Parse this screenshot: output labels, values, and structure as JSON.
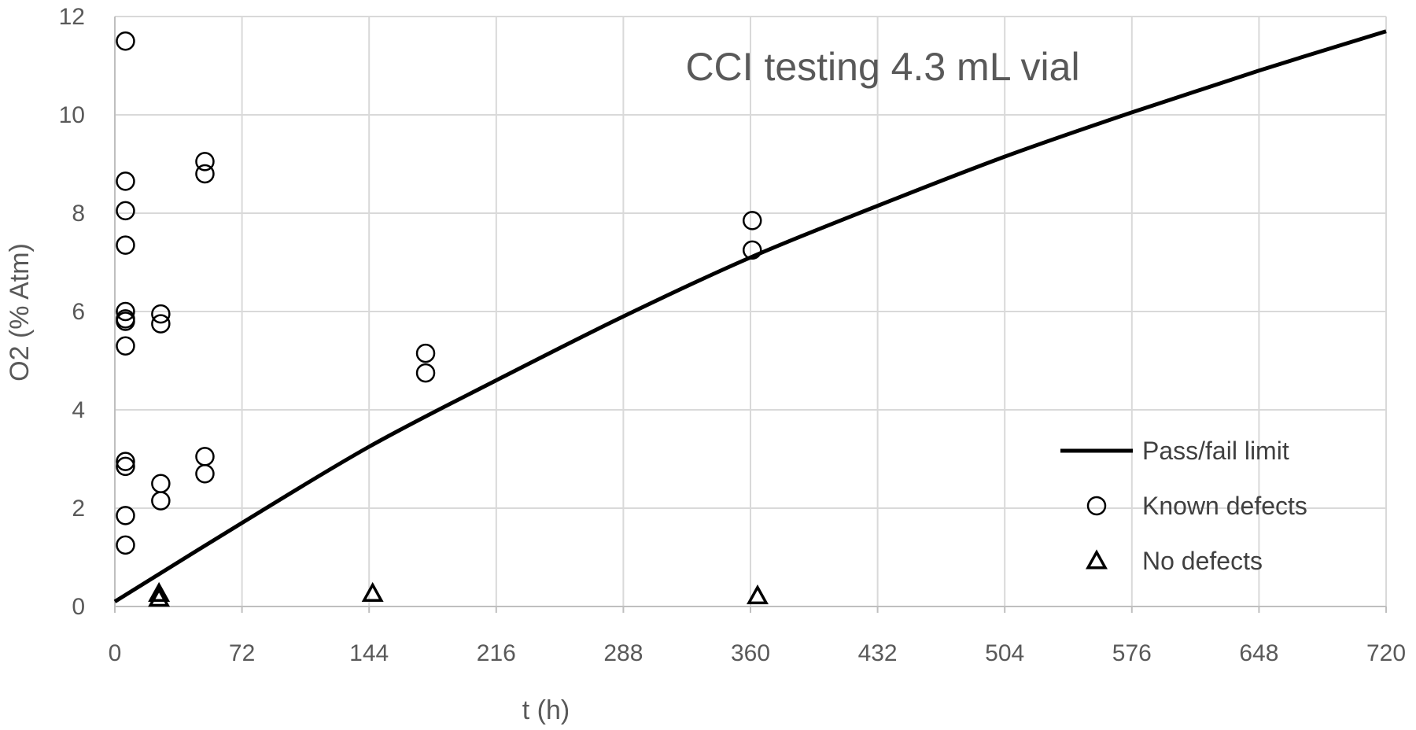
{
  "chart_data": {
    "type": "scatter",
    "title": "CCI testing 4.3 mL vial",
    "xlabel": "t (h)",
    "ylabel": "O2 (% Atm)",
    "xlim": [
      0,
      720
    ],
    "ylim": [
      0,
      12
    ],
    "xticks": [
      0,
      72,
      144,
      216,
      288,
      360,
      432,
      504,
      576,
      648,
      720
    ],
    "yticks": [
      0,
      2,
      4,
      6,
      8,
      10,
      12
    ],
    "grid": true,
    "legend_position": "bottom-right",
    "series": [
      {
        "name": "Pass/fail limit",
        "kind": "line",
        "color": "#000000",
        "x": [
          0,
          72,
          144,
          216,
          288,
          360,
          432,
          504,
          576,
          648,
          720
        ],
        "y": [
          0.1,
          1.7,
          3.25,
          4.6,
          5.9,
          7.1,
          8.15,
          9.15,
          10.05,
          10.9,
          11.7
        ]
      },
      {
        "name": "Known defects",
        "kind": "circle",
        "color": "#000000",
        "x": [
          6,
          6,
          6,
          6,
          6,
          6,
          6,
          6,
          6,
          6,
          6,
          6,
          26,
          26,
          26,
          26,
          51,
          51,
          51,
          51,
          176,
          176,
          361,
          361
        ],
        "y": [
          11.5,
          8.65,
          8.05,
          7.35,
          6.0,
          5.85,
          5.8,
          5.3,
          2.95,
          2.85,
          1.85,
          1.25,
          5.95,
          5.75,
          2.5,
          2.15,
          9.05,
          8.8,
          3.05,
          2.7,
          5.15,
          4.75,
          7.85,
          7.25
        ]
      },
      {
        "name": "No defects",
        "kind": "triangle",
        "color": "#000000",
        "x": [
          25,
          25,
          146,
          364
        ],
        "y": [
          0.2,
          0.1,
          0.2,
          0.15
        ]
      }
    ]
  }
}
